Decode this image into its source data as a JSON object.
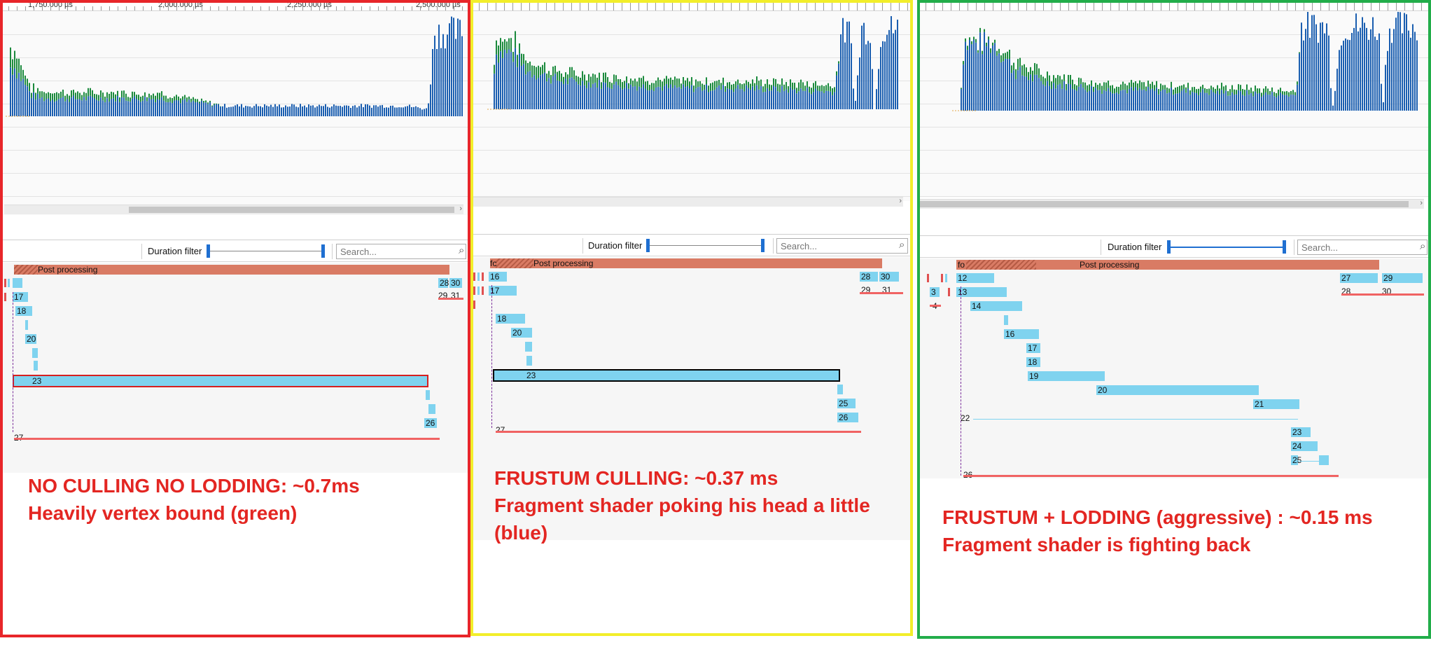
{
  "panels": [
    {
      "id": "no-culling",
      "frame_color": "#e8262a",
      "ruler_labels": [
        "1,750.000 µs",
        "2,000.000 µs",
        "2,250.000 µs",
        "2,500.000 µs"
      ],
      "duration_filter_label": "Duration filter",
      "search_placeholder": "Search...",
      "post_processing_label": "Post processing",
      "post_processing_prefix": "",
      "event_labels": [
        "17",
        "18",
        "20",
        "23",
        "26",
        "27",
        "28",
        "30",
        "29",
        "31"
      ],
      "caption_line1": "NO CULLING NO LODDING:  ~0.7ms",
      "caption_line2": "Heavily vertex bound (green)",
      "caption_line3": ""
    },
    {
      "id": "frustum-culling",
      "frame_color": "#f2ee2a",
      "ruler_labels": [],
      "duration_filter_label": "Duration filter",
      "search_placeholder": "Search...",
      "post_processing_label": "Post processing",
      "post_processing_prefix": "fc",
      "event_labels": [
        "16",
        "17",
        "18",
        "20",
        "23",
        "25",
        "26",
        "27",
        "28",
        "30",
        "29",
        "31"
      ],
      "caption_line1": "FRUSTUM CULLING: ~0.37 ms",
      "caption_line2": "Fragment shader poking his head a little",
      "caption_line3": "(blue)"
    },
    {
      "id": "frustum-lodding",
      "frame_color": "#22ad4a",
      "ruler_labels": [],
      "duration_filter_label": "Duration filter",
      "search_placeholder": "Search...",
      "post_processing_label": "Post processing",
      "post_processing_prefix": "fo",
      "event_labels": [
        "12",
        "13",
        "14",
        "16",
        "17",
        "18",
        "19",
        "20",
        "21",
        "22",
        "23",
        "24",
        "25",
        "26",
        "3",
        "4",
        "27",
        "29",
        "28",
        "30"
      ],
      "caption_line1": "FRUSTUM + LODDING (aggressive) : ~0.15 ms",
      "caption_line2": "Fragment shader is fighting back",
      "caption_line3": ""
    }
  ],
  "colors": {
    "vertex_bar": "#1b8a3d",
    "fragment_bar": "#1a5eb0",
    "event_bar": "#7fd3ef",
    "post_processing_bar": "#d97b64",
    "caption_text": "#e32622"
  },
  "icons": {
    "search": "search-icon",
    "slider_handle": "slider-handle"
  }
}
